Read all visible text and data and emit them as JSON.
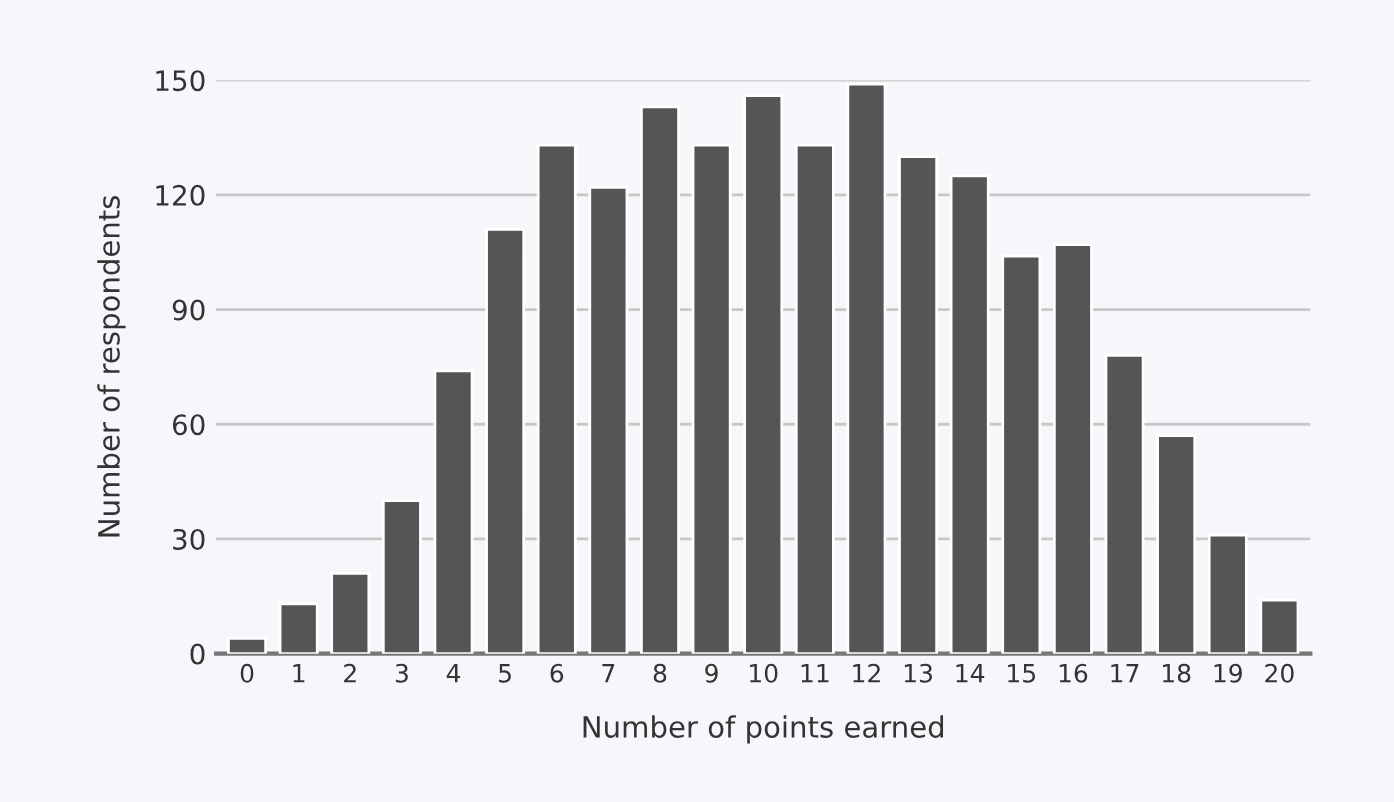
{
  "chart_data": {
    "type": "bar",
    "xlabel": "Number of points earned",
    "ylabel": "Number of respondents",
    "categories": [
      "0",
      "1",
      "2",
      "3",
      "4",
      "5",
      "6",
      "7",
      "8",
      "9",
      "10",
      "11",
      "12",
      "13",
      "14",
      "15",
      "16",
      "17",
      "18",
      "19",
      "20"
    ],
    "values": [
      4,
      13,
      21,
      40,
      74,
      111,
      133,
      122,
      143,
      133,
      146,
      133,
      149,
      130,
      125,
      104,
      107,
      78,
      57,
      31,
      14
    ],
    "color": "#555555",
    "ylim": [
      0,
      150
    ],
    "yticks": [
      0,
      30,
      60,
      90,
      120,
      150
    ],
    "grid": "y",
    "legend": false
  }
}
